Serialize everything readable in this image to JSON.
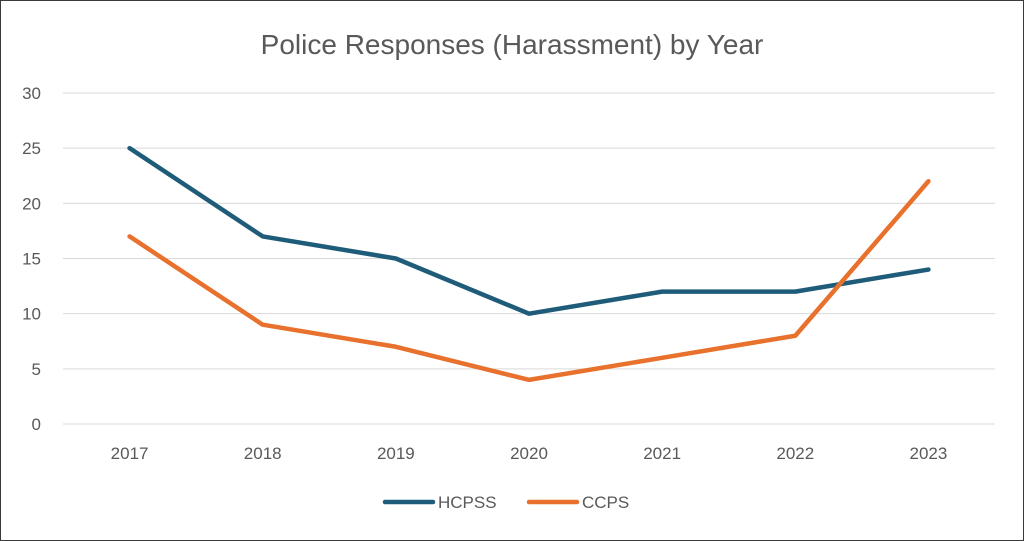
{
  "chart_data": {
    "type": "line",
    "title": "Police Responses (Harassment) by Year",
    "xlabel": "",
    "ylabel": "",
    "categories": [
      "2017",
      "2018",
      "2019",
      "2020",
      "2021",
      "2022",
      "2023"
    ],
    "ylim": [
      0,
      30
    ],
    "yticks": [
      0,
      5,
      10,
      15,
      20,
      25,
      30
    ],
    "grid": true,
    "legend_position": "bottom",
    "series": [
      {
        "name": "HCPSS",
        "color": "#1f5c7a",
        "values": [
          25,
          17,
          15,
          10,
          12,
          12,
          14
        ]
      },
      {
        "name": "CCPS",
        "color": "#e8712d",
        "values": [
          17,
          9,
          7,
          4,
          6,
          8,
          22
        ]
      }
    ]
  }
}
